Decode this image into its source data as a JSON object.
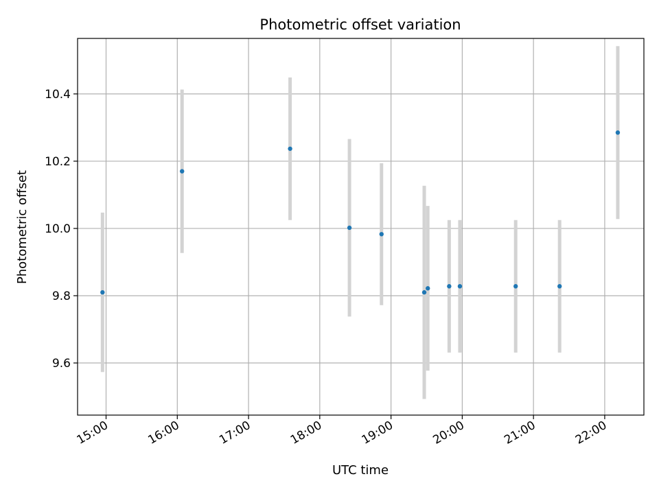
{
  "chart_data": {
    "type": "scatter",
    "title": "Photometric offset variation",
    "xlabel": "UTC time",
    "ylabel": "Photometric offset",
    "x_ticks": [
      "15:00",
      "16:00",
      "17:00",
      "18:00",
      "19:00",
      "20:00",
      "21:00",
      "22:00"
    ],
    "y_ticks": [
      "9.6",
      "9.8",
      "10.0",
      "10.2",
      "10.4"
    ],
    "xlim": [
      "14:36",
      "22:33"
    ],
    "ylim": [
      9.445,
      10.565
    ],
    "grid": true,
    "point_color": "#1f77b4",
    "errorbar_color": "#d3d3d3",
    "points": [
      {
        "x": "14:57",
        "y": 9.81,
        "yerr": 0.237
      },
      {
        "x": "16:04",
        "y": 10.17,
        "yerr": 0.243
      },
      {
        "x": "17:35",
        "y": 10.237,
        "yerr": 0.212
      },
      {
        "x": "18:25",
        "y": 10.002,
        "yerr": 0.264
      },
      {
        "x": "18:52",
        "y": 9.983,
        "yerr": 0.211
      },
      {
        "x": "19:28",
        "y": 9.81,
        "yerr": 0.317
      },
      {
        "x": "19:31",
        "y": 9.822,
        "yerr": 0.245
      },
      {
        "x": "19:49",
        "y": 9.828,
        "yerr": 0.197
      },
      {
        "x": "19:58",
        "y": 9.828,
        "yerr": 0.197
      },
      {
        "x": "20:45",
        "y": 9.828,
        "yerr": 0.197
      },
      {
        "x": "21:22",
        "y": 9.828,
        "yerr": 0.197
      },
      {
        "x": "22:11",
        "y": 10.285,
        "yerr": 0.257
      }
    ]
  }
}
